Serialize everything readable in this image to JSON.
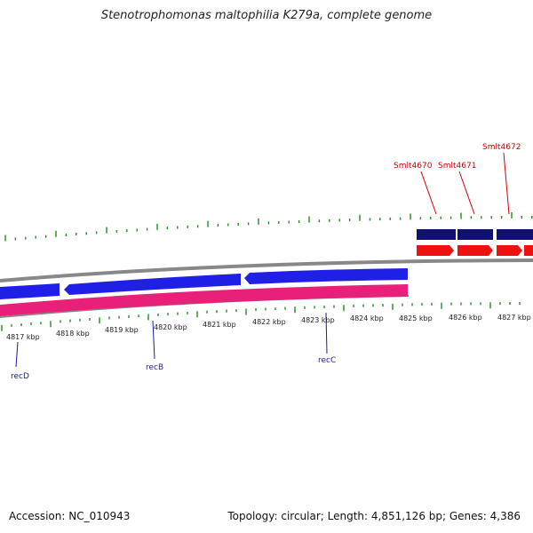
{
  "title": "Stenotrophomonas maltophilia K279a, complete genome",
  "footer": {
    "accession": "Accession: NC_010943",
    "summary": "Topology: circular; Length: 4,851,126 bp; Genes: 4,386"
  },
  "kbp_labels": [
    "4817 kbp",
    "4818 kbp",
    "4819 kbp",
    "4820 kbp",
    "4821 kbp",
    "4822 kbp",
    "4823 kbp",
    "4824 kbp",
    "4825 kbp",
    "4826 kbp",
    "4827 kbp"
  ],
  "genes_top": [
    {
      "label": "Smlt4670"
    },
    {
      "label": "Smlt4671"
    },
    {
      "label": "Smlt4672"
    }
  ],
  "genes_bottom": [
    {
      "label": "recD"
    },
    {
      "label": "recB"
    },
    {
      "label": "recC"
    }
  ],
  "colors": {
    "tick": "#228b22",
    "backbone": "#888888",
    "gene_blue": "#1f1fe6",
    "gene_navy": "#101070",
    "gene_red": "#ee1111",
    "gene_pink": "#e8207a",
    "label_red": "#cc0000",
    "label_blue": "#1a1aa6"
  }
}
